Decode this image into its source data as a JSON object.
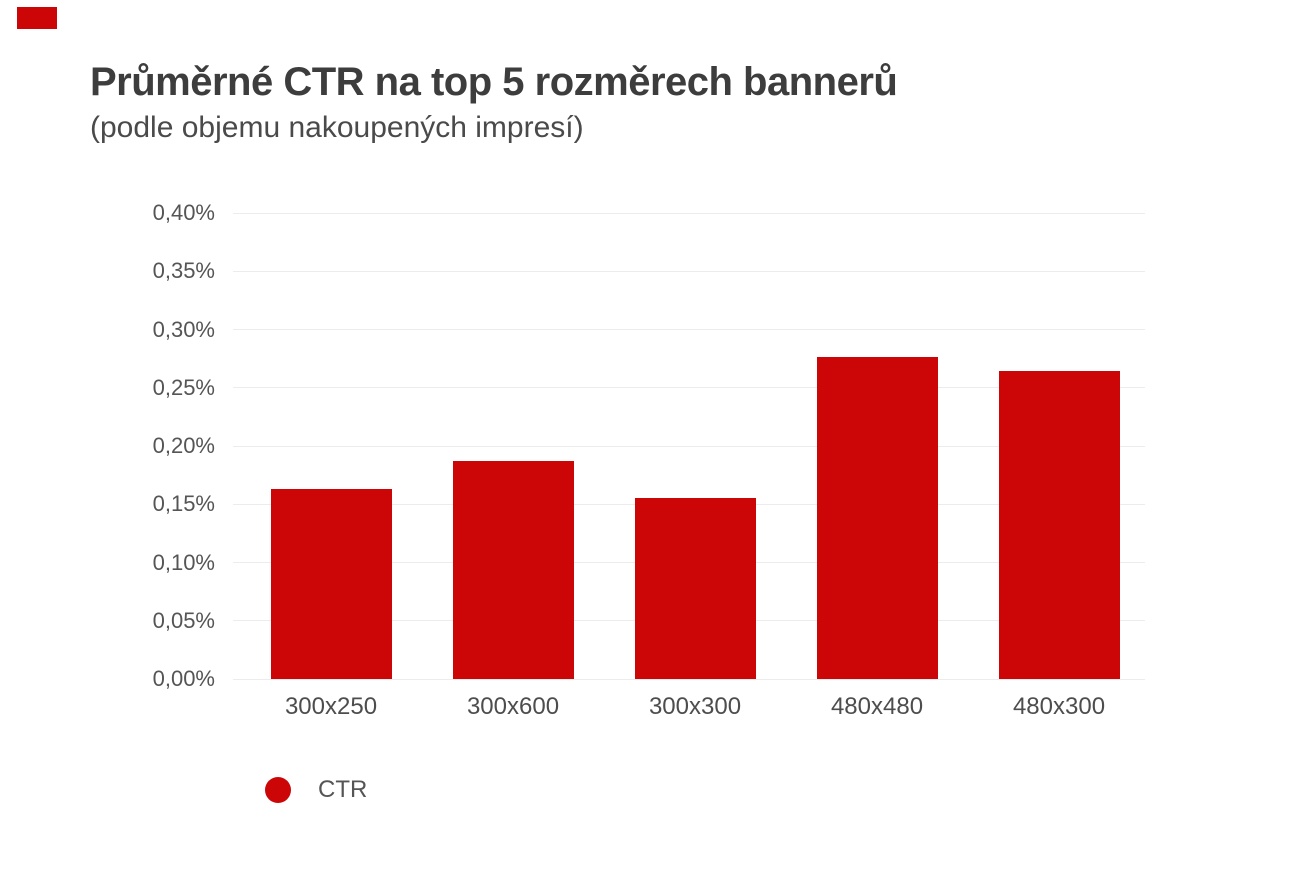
{
  "page": {
    "background": "#ffffff"
  },
  "brand_mark": {
    "color": "#cc0606"
  },
  "colors": {
    "bar": "#cc0606",
    "title": "#3d3d3d",
    "subtitle": "#4a4a4a",
    "tick": "#555555",
    "grid": "#ececec"
  },
  "chart_data": {
    "type": "bar",
    "title": "Průměrné CTR na top 5 rozměrech bannerů",
    "subtitle": "(podle objemu nakoupených impresí)",
    "categories": [
      "300x250",
      "300x600",
      "300x300",
      "480x480",
      "480x300"
    ],
    "series": [
      {
        "name": "CTR",
        "color": "#cc0606",
        "values_percent": [
          0.163,
          0.187,
          0.155,
          0.276,
          0.264
        ]
      }
    ],
    "xlabel": "",
    "ylabel": "",
    "ylim": [
      0,
      0.4
    ],
    "y_ticks": [
      {
        "value": 0.4,
        "label": "0,40%"
      },
      {
        "value": 0.35,
        "label": "0,35%"
      },
      {
        "value": 0.3,
        "label": "0,30%"
      },
      {
        "value": 0.25,
        "label": "0,25%"
      },
      {
        "value": 0.2,
        "label": "0,20%"
      },
      {
        "value": 0.15,
        "label": "0,15%"
      },
      {
        "value": 0.1,
        "label": "0,10%"
      },
      {
        "value": 0.05,
        "label": "0,05%"
      },
      {
        "value": 0.0,
        "label": "0,00%"
      }
    ],
    "grid": {
      "horizontal": true,
      "vertical": false,
      "color": "#ececec"
    },
    "legend": {
      "position": "bottom-left",
      "items": [
        {
          "label": "CTR",
          "marker": "circle",
          "color": "#cc0606"
        }
      ]
    }
  }
}
